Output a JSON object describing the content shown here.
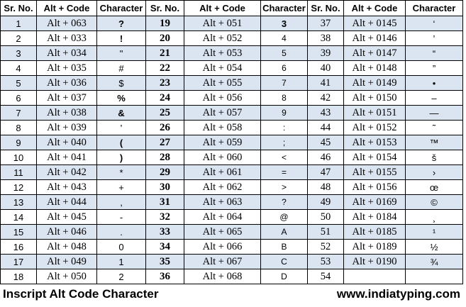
{
  "headers": [
    "Sr. No.",
    "Alt + Code",
    "Character",
    "Sr. No.",
    "Alt + Code",
    "Character",
    "Sr. No.",
    "Alt + Code",
    "Character"
  ],
  "rows": [
    [
      "1",
      "Alt + 063",
      "?",
      "19",
      "Alt + 051",
      "3",
      "37",
      "Alt + 0145",
      "‘"
    ],
    [
      "2",
      "Alt + 033",
      "!",
      "20",
      "Alt + 052",
      "4",
      "38",
      "Alt + 0146",
      "’"
    ],
    [
      "3",
      "Alt + 034",
      "\"",
      "21",
      "Alt + 053",
      "5",
      "39",
      "Alt + 0147",
      "“"
    ],
    [
      "4",
      "Alt + 035",
      "#",
      "22",
      "Alt + 054",
      "6",
      "40",
      "Alt + 0148",
      "”"
    ],
    [
      "5",
      "Alt + 036",
      "$",
      "23",
      "Alt + 055",
      "7",
      "41",
      "Alt + 0149",
      "•"
    ],
    [
      "6",
      "Alt + 037",
      "%",
      "24",
      "Alt + 056",
      "8",
      "42",
      "Alt + 0150",
      "–"
    ],
    [
      "7",
      "Alt + 038",
      "&",
      "25",
      "Alt + 057",
      "9",
      "43",
      "Alt + 0151",
      "—"
    ],
    [
      "8",
      "Alt + 039",
      "'",
      "26",
      "Alt + 058",
      ":",
      "44",
      "Alt + 0152",
      "˜"
    ],
    [
      "9",
      "Alt + 040",
      "(",
      "27",
      "Alt + 059",
      ";",
      "45",
      "Alt + 0153",
      "™"
    ],
    [
      "10",
      "Alt + 041",
      ")",
      "28",
      "Alt + 060",
      "<",
      "46",
      "Alt + 0154",
      "š"
    ],
    [
      "11",
      "Alt + 042",
      "*",
      "29",
      "Alt + 061",
      "=",
      "47",
      "Alt + 0155",
      "›"
    ],
    [
      "12",
      "Alt + 043",
      "+",
      "30",
      "Alt + 062",
      ">",
      "48",
      "Alt + 0156",
      "œ"
    ],
    [
      "13",
      "Alt + 044",
      ",",
      "31",
      "Alt + 063",
      "?",
      "49",
      "Alt + 0169",
      "©"
    ],
    [
      "14",
      "Alt + 045",
      "-",
      "32",
      "Alt + 064",
      "@",
      "50",
      "Alt + 0184",
      "¸"
    ],
    [
      "15",
      "Alt + 046",
      ".",
      "33",
      "Alt + 065",
      "A",
      "51",
      "Alt + 0185",
      "¹"
    ],
    [
      "16",
      "Alt + 048",
      "0",
      "34",
      "Alt + 066",
      "B",
      "52",
      "Alt + 0189",
      "½"
    ],
    [
      "17",
      "Alt + 049",
      "1",
      "35",
      "Alt + 067",
      "C",
      "53",
      "Alt + 0190",
      "¾"
    ],
    [
      "18",
      "Alt + 050",
      "2",
      "36",
      "Alt + 068",
      "D",
      "54",
      "",
      ""
    ]
  ],
  "footer": {
    "left": "Inscript Alt Code Character",
    "right": "www.indiatyping.com"
  },
  "colors": {
    "stripe": "#dbe5f1",
    "background": "#ffffff",
    "border": "#000000"
  }
}
